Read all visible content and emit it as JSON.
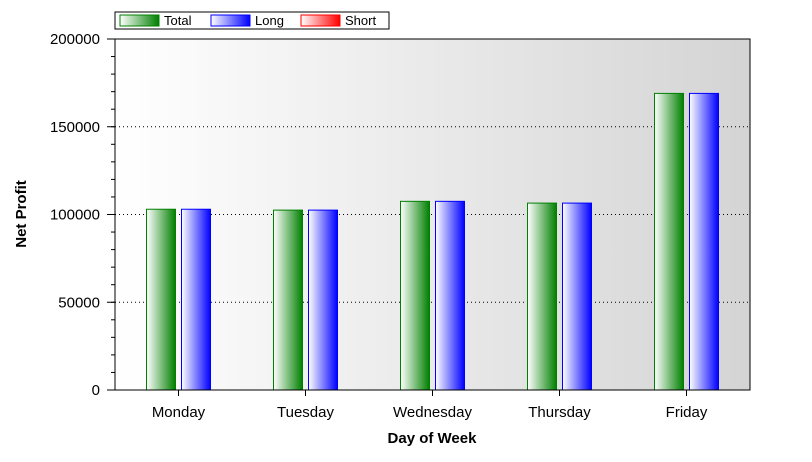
{
  "chart_data": {
    "type": "bar",
    "categories": [
      "Monday",
      "Tuesday",
      "Wednesday",
      "Thursday",
      "Friday"
    ],
    "series": [
      {
        "name": "Total",
        "values": [
          103000,
          102500,
          107500,
          106500,
          169000
        ],
        "color": "#008000"
      },
      {
        "name": "Long",
        "values": [
          103000,
          102500,
          107500,
          106500,
          169000
        ],
        "color": "#0000ff"
      },
      {
        "name": "Short",
        "values": [
          0,
          0,
          0,
          0,
          0
        ],
        "color": "#ff0000"
      }
    ],
    "xlabel": "Day of Week",
    "ylabel": "Net Profit",
    "ylim": [
      0,
      200000
    ],
    "yticks": [
      "0",
      "50000",
      "100000",
      "150000",
      "200000"
    ],
    "grid": "horizontal dotted",
    "legend_position": "top-left"
  }
}
